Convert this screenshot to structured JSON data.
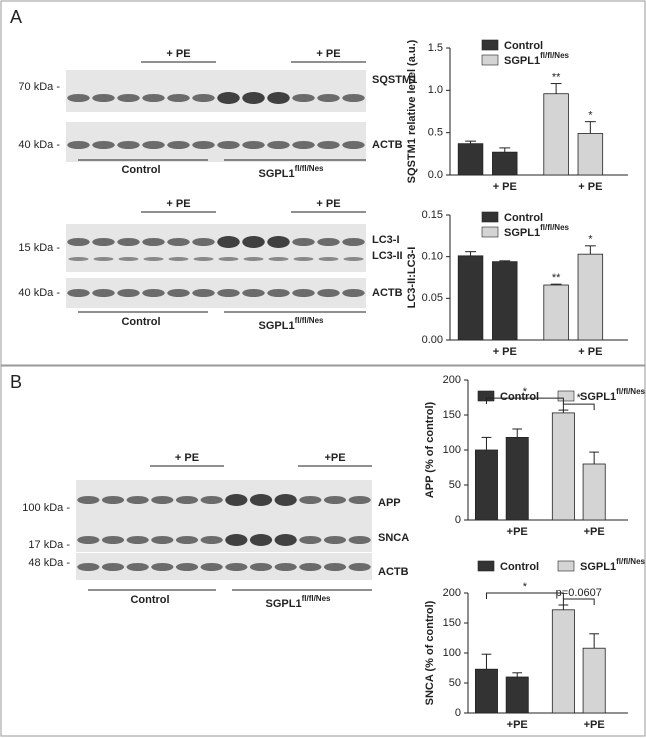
{
  "panels": [
    "A",
    "B"
  ],
  "blots": [
    {
      "pe": [
        "+ PE",
        "+ PE"
      ],
      "rows": [
        {
          "kda": "70 kDa -",
          "names": [
            "SQSTM1"
          ]
        },
        {
          "kda": "40 kDa -",
          "names": [
            "ACTB"
          ]
        }
      ],
      "groups": [
        "Control",
        "SGPL1"
      ],
      "group_superscript": "fl/fl/Nes"
    },
    {
      "pe": [
        "+ PE",
        "+ PE"
      ],
      "rows": [
        {
          "kda": "15 kDa -",
          "names": [
            "LC3-I",
            "LC3-II"
          ]
        },
        {
          "kda": "40 kDa -",
          "names": [
            "ACTB"
          ]
        }
      ],
      "groups": [
        "Control",
        "SGPL1"
      ],
      "group_superscript": "fl/fl/Nes"
    },
    {
      "pe": [
        "+ PE",
        "+PE"
      ],
      "rows": [
        {
          "kda": "100 kDa -",
          "names": [
            "APP"
          ]
        },
        {
          "kda": "17 kDa -",
          "names": [
            "SNCA"
          ]
        },
        {
          "kda": "48 kDa -",
          "names": [
            "ACTB"
          ]
        }
      ],
      "groups": [
        "Control",
        "SGPL1"
      ],
      "group_superscript": "fl/fl/Nes"
    }
  ],
  "chart_data": [
    {
      "type": "bar",
      "ylabel": "SQSTM1 relative level (a.u.)",
      "categories": [
        null,
        "+ PE",
        null,
        "+ PE"
      ],
      "ylim": [
        0,
        1.5
      ],
      "yticks": [
        {
          "value": 0,
          "label": "0.0"
        },
        0.5,
        {
          "value": 1,
          "label": "1.0"
        },
        1.5
      ],
      "series": [
        {
          "name": "Control",
          "color": "#333333",
          "values": [
            0.37,
            0.27,
            null,
            null
          ],
          "errors": [
            0.03,
            0.05,
            null,
            null
          ]
        },
        {
          "name": "SGPL1",
          "name_superscript": "fl/fl/Nes",
          "color": "#d4d4d4",
          "values": [
            null,
            null,
            0.96,
            0.49
          ],
          "errors": [
            null,
            null,
            0.12,
            0.14
          ]
        }
      ],
      "annotations": [
        "**",
        "*"
      ]
    },
    {
      "type": "bar",
      "ylabel": "LC3-II:LC3-I",
      "categories": [
        null,
        "+ PE",
        null,
        "+ PE"
      ],
      "ylim": [
        0,
        0.15
      ],
      "yticks": [
        {
          "value": 0,
          "label": "0.00"
        },
        0.05,
        {
          "value": 0.1,
          "label": "0.10"
        },
        0.15
      ],
      "series": [
        {
          "name": "Control",
          "color": "#333333",
          "values": [
            0.101,
            0.094,
            null,
            null
          ],
          "errors": [
            0.005,
            0.001,
            null,
            null
          ]
        },
        {
          "name": "SGPL1",
          "name_superscript": "fl/fl/Nes",
          "color": "#d4d4d4",
          "values": [
            null,
            null,
            0.066,
            0.103
          ],
          "errors": [
            null,
            null,
            0.001,
            0.01
          ]
        }
      ],
      "annotations": [
        "**",
        "*"
      ]
    },
    {
      "type": "bar",
      "ylabel": "APP (% of control)",
      "categories": [
        null,
        "+PE",
        null,
        "+PE"
      ],
      "ylim": [
        0,
        200
      ],
      "yticks": [
        0,
        50,
        100,
        150,
        200
      ],
      "series": [
        {
          "name": "Control",
          "color": "#333333",
          "values": [
            100,
            118,
            null,
            null
          ],
          "errors": [
            18,
            12,
            null,
            null
          ]
        },
        {
          "name": "SGPL1",
          "name_superscript": "fl/fl/Nes",
          "color": "#d4d4d4",
          "values": [
            null,
            null,
            153,
            80
          ],
          "errors": [
            null,
            null,
            4,
            17
          ]
        }
      ],
      "brackets": [
        "*",
        "*"
      ]
    },
    {
      "type": "bar",
      "ylabel": "SNCA (% of control)",
      "categories": [
        null,
        "+PE",
        null,
        "+PE"
      ],
      "ylim": [
        0,
        200
      ],
      "yticks": [
        0,
        50,
        100,
        150,
        200
      ],
      "series": [
        {
          "name": "Control",
          "color": "#333333",
          "values": [
            73,
            60,
            null,
            null
          ],
          "errors": [
            25,
            7,
            null,
            null
          ]
        },
        {
          "name": "SGPL1",
          "name_superscript": "fl/fl/Nes",
          "color": "#d4d4d4",
          "values": [
            null,
            null,
            172,
            108
          ],
          "errors": [
            null,
            null,
            8,
            24
          ]
        }
      ],
      "brackets": [
        "*",
        "p=0.0607"
      ]
    }
  ]
}
